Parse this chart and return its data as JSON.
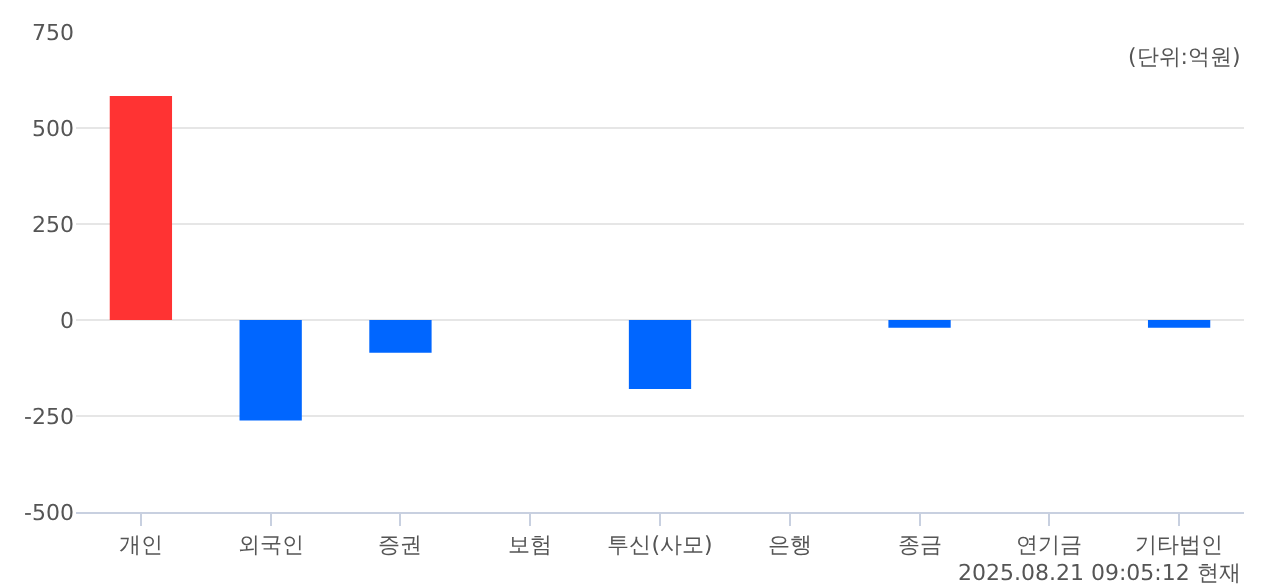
{
  "chart_data": {
    "type": "bar",
    "categories": [
      "개인",
      "외국인",
      "증권",
      "보험",
      "투신(사모)",
      "은행",
      "종금",
      "연기금",
      "기타법인"
    ],
    "values": [
      583,
      -262,
      -85,
      0,
      -180,
      0,
      -20,
      0,
      -20
    ],
    "colors": [
      "#ff3333",
      "#0066ff",
      "#0066ff",
      "#0066ff",
      "#0066ff",
      "#0066ff",
      "#0066ff",
      "#0066ff",
      "#0066ff"
    ],
    "ylim": [
      -500,
      750
    ],
    "yticks": [
      -500,
      -250,
      0,
      250,
      500,
      750
    ],
    "grid": "y",
    "annotations": [
      "(단위:억원)",
      "2025.08.21 09:05:12 현재"
    ]
  }
}
